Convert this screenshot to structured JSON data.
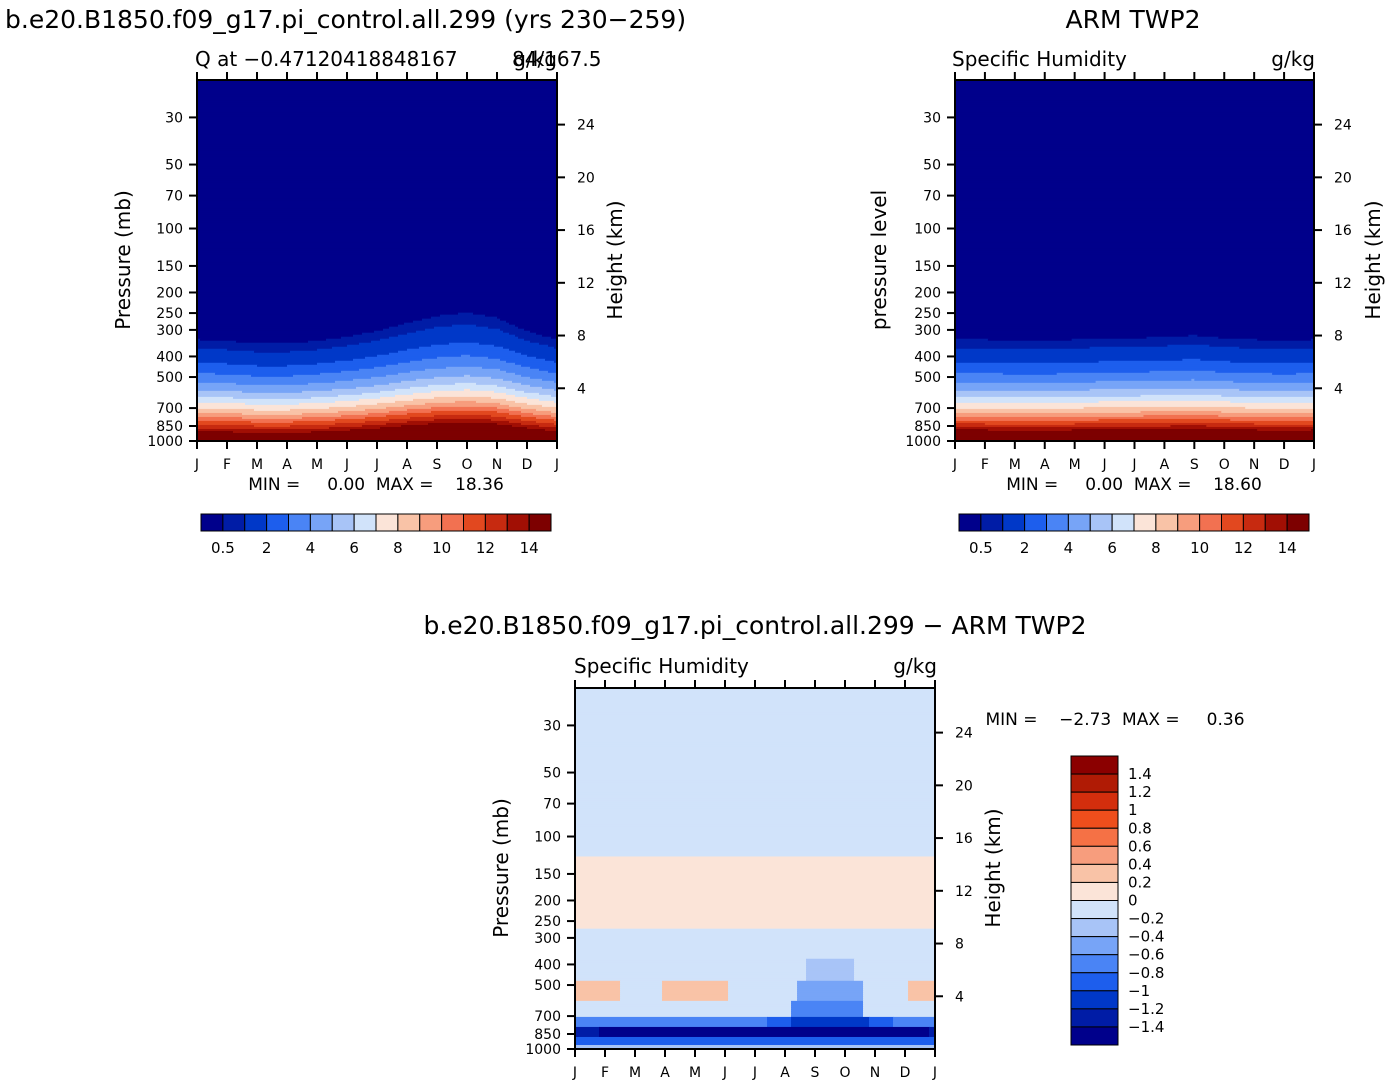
{
  "chart_data": [
    {
      "type": "heatmap",
      "id": "p1",
      "title": "b.e20.B1850.f09_g17.pi_control.all.299 (yrs 230−259)",
      "left_label": "Q at −0.47120418848167",
      "right_label": "84/167.5",
      "units": "g/kg",
      "ylabel": "Pressure (mb)",
      "y2label": "Height (km)",
      "stats_text": "MIN =     0.00  MAX =    18.36",
      "months": [
        "J",
        "F",
        "M",
        "A",
        "M",
        "J",
        "J",
        "A",
        "S",
        "O",
        "N",
        "D",
        "J"
      ],
      "pressure_ticks": [
        30,
        50,
        70,
        100,
        150,
        200,
        250,
        300,
        400,
        500,
        700,
        850,
        1000
      ],
      "height_ticks": [
        4,
        8,
        12,
        16,
        20,
        24
      ],
      "levels": [
        0.5,
        1,
        2,
        3,
        4,
        5,
        6,
        7,
        8,
        9,
        10,
        11,
        12,
        13,
        14
      ],
      "colorbar_labels": [
        "0.5",
        "2",
        "4",
        "6",
        "8",
        "10",
        "12",
        "14"
      ],
      "profile_p": [
        30,
        300,
        320,
        360,
        400,
        450,
        500,
        550,
        600,
        650,
        700,
        750,
        800,
        850,
        900,
        950,
        1000
      ],
      "profile_q": [
        0.003,
        0.05,
        0.3,
        0.9,
        1.5,
        2.4,
        3.4,
        4.4,
        5.5,
        6.8,
        8.0,
        9.4,
        11.0,
        12.4,
        14.0,
        15.8,
        16.5
      ],
      "seasonal_shift_mb": [
        0,
        -5,
        -15,
        -15,
        -5,
        10,
        30,
        55,
        75,
        85,
        70,
        30,
        0
      ]
    },
    {
      "type": "heatmap",
      "id": "p2",
      "title": "ARM TWP2",
      "left_label": "Specific Humidity",
      "units": "g/kg",
      "ylabel": "pressure level",
      "y2label": "Height (km)",
      "stats_text": "MIN =     0.00  MAX =    18.60",
      "months": [
        "J",
        "F",
        "M",
        "A",
        "M",
        "J",
        "J",
        "A",
        "S",
        "O",
        "N",
        "D",
        "J"
      ],
      "pressure_ticks": [
        30,
        50,
        70,
        100,
        150,
        200,
        250,
        300,
        400,
        500,
        700,
        850,
        1000
      ],
      "height_ticks": [
        4,
        8,
        12,
        16,
        20,
        24
      ],
      "levels": [
        0.5,
        1,
        2,
        3,
        4,
        5,
        6,
        7,
        8,
        9,
        10,
        11,
        12,
        13,
        14
      ],
      "colorbar_labels": [
        "0.5",
        "2",
        "4",
        "6",
        "8",
        "10",
        "12",
        "14"
      ],
      "profile_p": [
        30,
        300,
        320,
        360,
        400,
        450,
        500,
        550,
        600,
        650,
        700,
        750,
        800,
        850,
        900,
        950,
        1000
      ],
      "profile_q": [
        0.003,
        0.05,
        0.3,
        0.9,
        1.5,
        2.4,
        3.4,
        4.4,
        5.5,
        6.8,
        8.0,
        9.4,
        11.0,
        12.6,
        14.5,
        16.5,
        17.5
      ],
      "seasonal_shift_mb": [
        0,
        0,
        -5,
        -5,
        0,
        5,
        5,
        10,
        15,
        5,
        0,
        -5,
        0
      ]
    },
    {
      "type": "heatmap",
      "id": "p3",
      "title": "b.e20.B1850.f09_g17.pi_control.all.299 − ARM TWP2",
      "left_label": "Specific Humidity",
      "units": "g/kg",
      "ylabel": "Pressure (mb)",
      "y2label": "Height (km)",
      "stats_text": "MIN =    −2.73  MAX =     0.36",
      "months": [
        "J",
        "F",
        "M",
        "A",
        "M",
        "J",
        "J",
        "A",
        "S",
        "O",
        "N",
        "D",
        "J"
      ],
      "pressure_ticks": [
        30,
        50,
        70,
        100,
        150,
        200,
        250,
        300,
        400,
        500,
        700,
        850,
        1000
      ],
      "height_ticks": [
        4,
        8,
        12,
        16,
        20,
        24
      ],
      "levels": [
        -1.4,
        -1.2,
        -1,
        -0.8,
        -0.6,
        -0.4,
        -0.2,
        0,
        0.2,
        0.4,
        0.6,
        0.8,
        1,
        1.2,
        1.4
      ],
      "colorbar_labels": [
        "1.4",
        "1.2",
        "1",
        "0.8",
        "0.6",
        "0.4",
        "0.2",
        "0",
        "−0.2",
        "−0.4",
        "−0.6",
        "−0.8",
        "−1",
        "−1.2",
        "−1.4"
      ]
    }
  ],
  "colors": {
    "q_fill": [
      "#00008b",
      "#001ca6",
      "#0038c8",
      "#1d5eed",
      "#4a84f5",
      "#77a4f7",
      "#a8c4f7",
      "#d1e3fa",
      "#fbe4d8",
      "#f9c3a7",
      "#f79d7d",
      "#f27151",
      "#e2481f",
      "#c72a10",
      "#a10f04",
      "#7d0000"
    ],
    "diff_fill": [
      "#00008b",
      "#001ca6",
      "#0038c8",
      "#1d5eed",
      "#4a84f5",
      "#77a4f7",
      "#a8c4f7",
      "#d1e3fa",
      "#fbe4d8",
      "#f9c3a7",
      "#f79d7d",
      "#f57145",
      "#ee4e1c",
      "#d32e0d",
      "#b01b05",
      "#8b0000"
    ]
  }
}
